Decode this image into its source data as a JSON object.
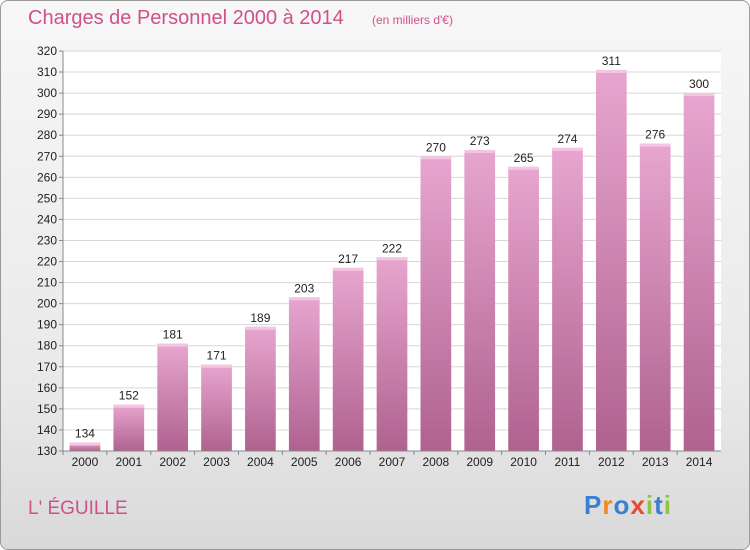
{
  "title": "Charges de Personnel 2000 à 2014",
  "subtitle": "(en milliers d'€)",
  "place": "L' ÉGUILLE",
  "logo": {
    "letters": [
      "P",
      "r",
      "o",
      "x",
      "i",
      "t",
      "i"
    ],
    "colors": [
      "#3a7fd0",
      "#f08a1c",
      "#3a7fd0",
      "#e84a30",
      "#8dc63f",
      "#3a7fd0",
      "#8dc63f"
    ]
  },
  "colors": {
    "title": "#d0508a",
    "bar_top": "#e7a6cf",
    "bar_bottom": "#b0628f",
    "grid": "#d8d8d8"
  },
  "chart_data": {
    "type": "bar",
    "title": "Charges de Personnel 2000 à 2014",
    "subtitle": "(en milliers d'€)",
    "categories": [
      "2000",
      "2001",
      "2002",
      "2003",
      "2004",
      "2005",
      "2006",
      "2007",
      "2008",
      "2009",
      "2010",
      "2011",
      "2012",
      "2013",
      "2014"
    ],
    "values": [
      134,
      152,
      181,
      171,
      189,
      203,
      217,
      222,
      270,
      273,
      265,
      274,
      311,
      276,
      300
    ],
    "ylim": [
      130,
      320
    ],
    "yticks": [
      130,
      140,
      150,
      160,
      170,
      180,
      190,
      200,
      210,
      220,
      230,
      240,
      250,
      260,
      270,
      280,
      290,
      300,
      310,
      320
    ],
    "grid": true
  }
}
